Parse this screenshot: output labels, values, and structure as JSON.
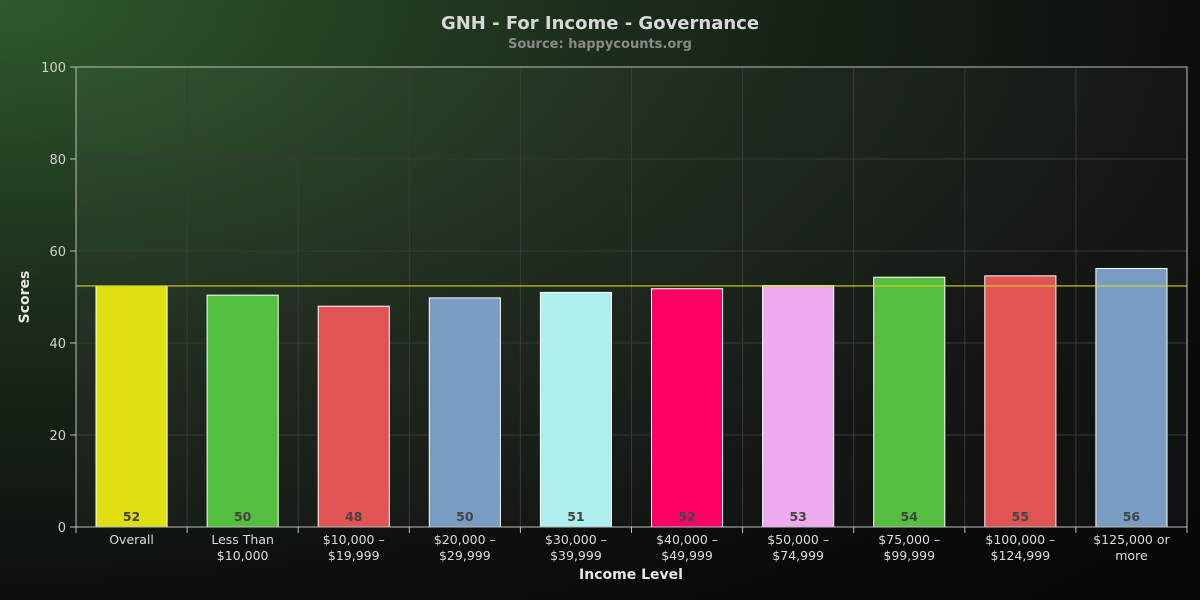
{
  "chart_data": {
    "type": "bar",
    "title": "GNH - For Income - Governance",
    "subtitle": "Source: happycounts.org",
    "xlabel": "Income Level",
    "ylabel": "Scores",
    "ylim": [
      0,
      100
    ],
    "yticks": [
      0,
      20,
      40,
      60,
      80,
      100
    ],
    "grid": true,
    "categories": [
      [
        "Overall"
      ],
      [
        "Less Than",
        "$10,000"
      ],
      [
        "$10,000 –",
        "$19,999"
      ],
      [
        "$20,000 –",
        "$29,999"
      ],
      [
        "$30,000 –",
        "$39,999"
      ],
      [
        "$40,000 –",
        "$49,999"
      ],
      [
        "$50,000 –",
        "$74,999"
      ],
      [
        "$75,000 –",
        "$99,999"
      ],
      [
        "$100,000 –",
        "$124,999"
      ],
      [
        "$125,000 or",
        "more"
      ]
    ],
    "values": [
      52.4,
      50.4,
      48.0,
      49.8,
      51.0,
      51.8,
      52.5,
      54.3,
      54.6,
      56.2
    ],
    "value_labels": [
      "52",
      "50",
      "48",
      "50",
      "51",
      "52",
      "53",
      "54",
      "55",
      "56"
    ],
    "colors": [
      "#dfe011",
      "#55be3f",
      "#e05454",
      "#7a9bc2",
      "#aeefed",
      "#ff0066",
      "#eeaaee",
      "#55be3f",
      "#e05454",
      "#7a9bc2"
    ],
    "reference_line": {
      "value": 52.4,
      "color": "#d4d42a"
    }
  }
}
